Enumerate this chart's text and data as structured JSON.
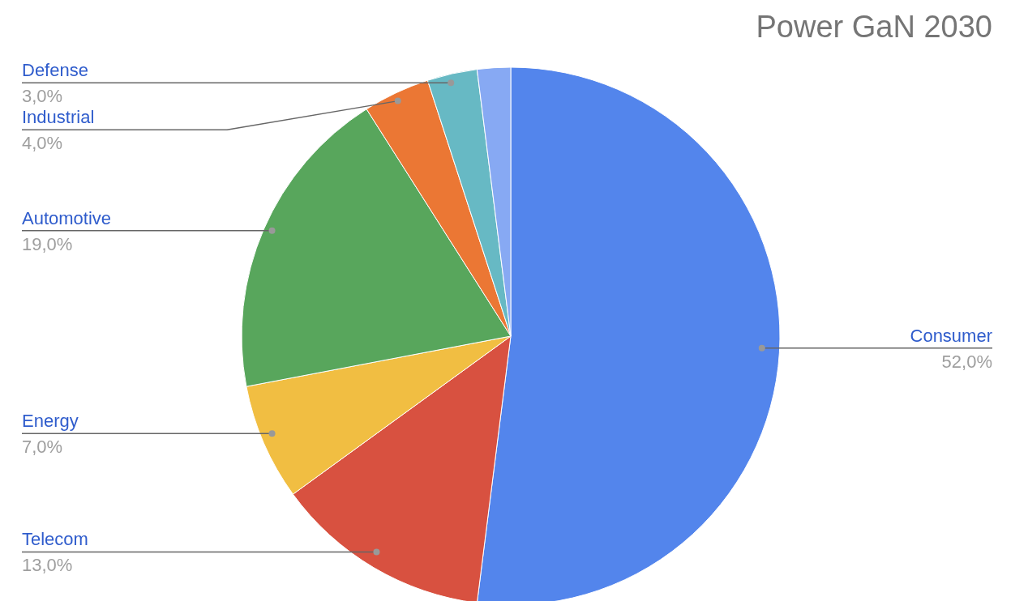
{
  "chart_data": {
    "type": "pie",
    "title": "Power GaN 2030",
    "categories": [
      "Consumer",
      "Telecom",
      "Energy",
      "Automotive",
      "Industrial",
      "Defense",
      null
    ],
    "values": [
      52,
      13,
      7,
      19,
      4,
      3,
      2
    ],
    "colors": [
      "#5385ec",
      "#d85140",
      "#f1be42",
      "#58a65c",
      "#eb7734",
      "#67b9c4",
      "#87a9f3"
    ],
    "value_labels": [
      "52,0%",
      "13,0%",
      "7,0%",
      "19,0%",
      "4,0%",
      "3,0%",
      null
    ]
  }
}
